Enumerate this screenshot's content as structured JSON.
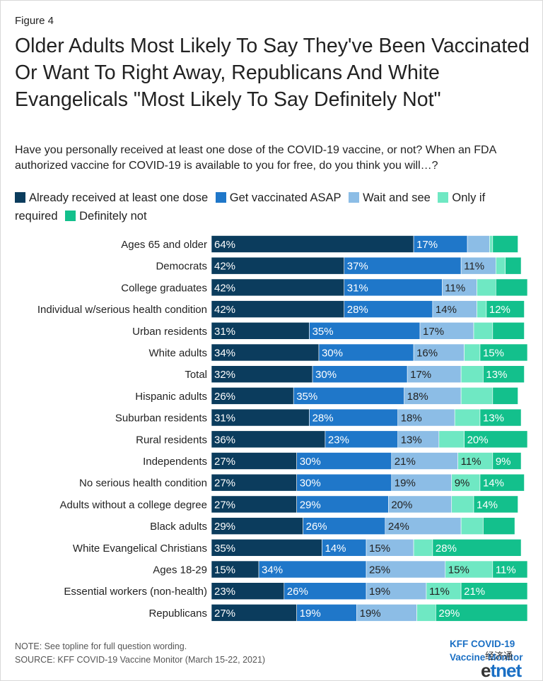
{
  "figure_label": "Figure 4",
  "title": "Older Adults Most Likely To Say They've Been Vaccinated Or Want To Right Away, Republicans And White Evangelicals \"Most Likely To Say Definitely Not\"",
  "subtitle": "Have you personally received at least one dose of the COVID-19 vaccine, or not? When an FDA authorized vaccine for COVID-19 is available to you for free, do you think you will…?",
  "note": "NOTE: See topline for full question wording.",
  "source": "SOURCE: KFF COVID-19 Vaccine Monitor (March 15-22, 2021)",
  "brand": {
    "line1": "KFF COVID-19",
    "line2": "Vaccine Monitor"
  },
  "watermark": {
    "top": "经济通",
    "e": "e",
    "rest": "tnet"
  },
  "colors": {
    "already": "#0b3c5d",
    "asap": "#1f77c9",
    "wait": "#8cbde6",
    "only_if": "#6fe8c3",
    "definitely_not": "#13c08c",
    "brand": "#1a6fc4"
  },
  "chart_data": {
    "type": "bar",
    "orientation": "horizontal",
    "stacked": true,
    "xlim": [
      0,
      100
    ],
    "categories": [
      "Ages 65 and older",
      "Democrats",
      "College graduates",
      "Individual w/serious health condition",
      "Urban residents",
      "White adults",
      "Total",
      "Hispanic adults",
      "Suburban residents",
      "Rural residents",
      "Independents",
      "No serious health condition",
      "Adults without a college degree",
      "Black adults",
      "White Evangelical Christians",
      "Ages 18-29",
      "Essential workers (non-health)",
      "Republicans"
    ],
    "series": [
      {
        "name": "Already received at least one dose",
        "color": "#0b3c5d",
        "values": [
          64,
          42,
          42,
          42,
          31,
          34,
          32,
          26,
          31,
          36,
          27,
          27,
          27,
          29,
          35,
          15,
          23,
          27
        ],
        "labels": [
          true,
          true,
          true,
          true,
          true,
          true,
          true,
          true,
          true,
          true,
          true,
          true,
          true,
          true,
          true,
          true,
          true,
          true
        ]
      },
      {
        "name": "Get vaccinated ASAP",
        "color": "#1f77c9",
        "values": [
          17,
          37,
          31,
          28,
          35,
          30,
          30,
          35,
          28,
          23,
          30,
          30,
          29,
          26,
          14,
          34,
          26,
          19
        ],
        "labels": [
          true,
          true,
          true,
          true,
          true,
          true,
          true,
          true,
          true,
          true,
          true,
          true,
          true,
          true,
          true,
          true,
          true,
          true
        ]
      },
      {
        "name": "Wait and see",
        "color": "#8cbde6",
        "values": [
          7,
          11,
          11,
          14,
          17,
          16,
          17,
          18,
          18,
          13,
          21,
          19,
          20,
          24,
          15,
          25,
          19,
          19
        ],
        "labels": [
          false,
          true,
          true,
          true,
          true,
          true,
          true,
          true,
          true,
          true,
          true,
          true,
          true,
          true,
          true,
          true,
          true,
          true
        ]
      },
      {
        "name": "Only if required",
        "color": "#6fe8c3",
        "values": [
          1,
          3,
          6,
          3,
          6,
          5,
          7,
          10,
          8,
          8,
          11,
          9,
          7,
          7,
          6,
          15,
          11,
          6
        ],
        "labels": [
          false,
          false,
          false,
          false,
          false,
          false,
          false,
          false,
          false,
          false,
          true,
          true,
          false,
          false,
          false,
          true,
          true,
          false
        ]
      },
      {
        "name": "Definitely not",
        "color": "#13c08c",
        "values": [
          8,
          5,
          10,
          12,
          10,
          15,
          13,
          8,
          13,
          20,
          9,
          14,
          14,
          10,
          28,
          11,
          21,
          29
        ],
        "labels": [
          false,
          false,
          false,
          true,
          false,
          true,
          true,
          false,
          true,
          true,
          true,
          true,
          true,
          false,
          true,
          true,
          true,
          true
        ]
      }
    ],
    "value_suffix": "%",
    "grid": false,
    "legend_position": "top"
  }
}
